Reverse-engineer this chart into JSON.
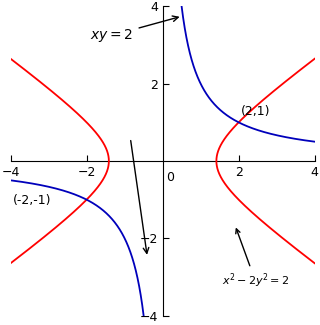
{
  "xlim": [
    -4,
    4
  ],
  "ylim": [
    -4,
    4
  ],
  "hyperbola_color": "#ff0000",
  "xy_color": "#0000bb",
  "background_color": "#ffffff",
  "tick_fontsize": 9,
  "label_fontsize": 10,
  "point1_label": "(2,1)",
  "point2_label": "(-2,-1)"
}
